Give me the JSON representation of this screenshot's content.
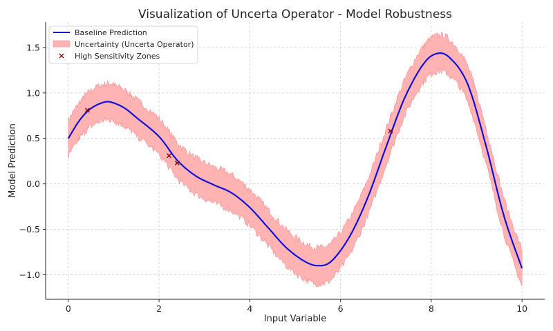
{
  "chart_data": {
    "type": "line",
    "title": "Visualization of Uncerta Operator - Model Robustness",
    "xlabel": "Input Variable",
    "ylabel": "Model Prediction",
    "xlim": [
      -0.5,
      10.5
    ],
    "ylim": [
      -1.27,
      1.78
    ],
    "xticks": [
      0,
      2,
      4,
      6,
      8,
      10
    ],
    "yticks": [
      -1.0,
      -0.5,
      0.0,
      0.5,
      1.0,
      1.5
    ],
    "grid": true,
    "legend_position": "top-left",
    "colors": {
      "baseline": "#1010d8",
      "band_fill": "#ffb3b3",
      "band_edge": "#ff8c8c",
      "marker": "#8b0000"
    },
    "series": [
      {
        "name": "Baseline Prediction",
        "kind": "line",
        "x": [
          0,
          0.25,
          0.5,
          0.8,
          1.0,
          1.25,
          1.5,
          2.0,
          2.4,
          2.8,
          3.2,
          3.6,
          4.0,
          4.4,
          4.8,
          5.2,
          5.5,
          5.8,
          6.2,
          6.6,
          7.0,
          7.4,
          7.8,
          8.1,
          8.4,
          8.8,
          9.2,
          9.6,
          10.0
        ],
        "y": [
          0.5,
          0.7,
          0.83,
          0.9,
          0.89,
          0.83,
          0.73,
          0.52,
          0.26,
          0.09,
          -0.01,
          -0.1,
          -0.26,
          -0.48,
          -0.7,
          -0.85,
          -0.9,
          -0.85,
          -0.58,
          -0.15,
          0.4,
          0.93,
          1.3,
          1.43,
          1.39,
          1.1,
          0.43,
          -0.35,
          -0.93
        ]
      },
      {
        "name": "Uncertainty (Uncerta Operator)",
        "kind": "band",
        "half_width": 0.2
      },
      {
        "name": "High Sensitivity Zones",
        "kind": "scatter",
        "x": [
          0.42,
          2.22,
          2.4,
          7.1
        ],
        "y": [
          0.81,
          0.31,
          0.23,
          0.58
        ]
      }
    ]
  }
}
